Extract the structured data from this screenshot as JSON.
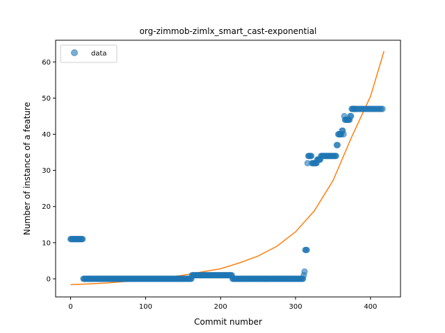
{
  "chart_data": {
    "type": "scatter",
    "title": "org-zimmob-zimlx_smart_cast-exponential",
    "xlabel": "Commit number",
    "ylabel": "Number of instance of a feature",
    "xlim": [
      -20,
      440
    ],
    "ylim": [
      -5,
      66
    ],
    "xticks": [
      0,
      100,
      200,
      300,
      400
    ],
    "yticks": [
      0,
      10,
      20,
      30,
      40,
      50,
      60
    ],
    "grid": false,
    "legend": "top-left",
    "legend_entries": [
      "data"
    ],
    "series": [
      {
        "name": "data",
        "kind": "scatter",
        "color": "#1f77b4",
        "segments": [
          {
            "x_start": 0,
            "x_end": 17,
            "y": 11
          },
          {
            "x_start": 17,
            "x_end": 162,
            "y": 0
          },
          {
            "x_start": 162,
            "x_end": 216,
            "y": 1
          },
          {
            "x_start": 216,
            "x_end": 311,
            "y": 0
          }
        ],
        "points": [
          [
            311,
            1
          ],
          [
            312,
            2
          ],
          [
            313,
            8
          ],
          [
            314,
            8
          ],
          [
            315,
            8
          ],
          [
            316,
            32
          ],
          [
            317,
            34
          ],
          [
            318,
            34
          ],
          [
            319,
            34
          ],
          [
            320,
            34
          ],
          [
            321,
            34
          ],
          [
            322,
            32
          ],
          [
            323,
            32
          ],
          [
            324,
            32
          ],
          [
            325,
            32
          ],
          [
            326,
            32
          ],
          [
            327,
            32
          ],
          [
            328,
            32
          ],
          [
            329,
            33
          ],
          [
            330,
            33
          ],
          [
            331,
            33
          ],
          [
            332,
            33
          ],
          [
            333,
            33
          ],
          [
            334,
            34
          ],
          [
            335,
            34
          ],
          [
            336,
            34
          ],
          [
            337,
            34
          ],
          [
            338,
            34
          ],
          [
            339,
            34
          ],
          [
            340,
            34
          ],
          [
            341,
            34
          ],
          [
            342,
            34
          ],
          [
            343,
            34
          ],
          [
            344,
            34
          ],
          [
            345,
            34
          ],
          [
            346,
            34
          ],
          [
            347,
            34
          ],
          [
            348,
            34
          ],
          [
            349,
            34
          ],
          [
            350,
            34
          ],
          [
            351,
            34
          ],
          [
            352,
            34
          ],
          [
            353,
            34
          ],
          [
            354,
            34
          ],
          [
            355,
            37
          ],
          [
            356,
            37
          ],
          [
            357,
            40
          ],
          [
            358,
            40
          ],
          [
            359,
            40
          ],
          [
            360,
            40
          ],
          [
            361,
            40
          ],
          [
            362,
            41
          ],
          [
            363,
            41
          ],
          [
            364,
            40
          ],
          [
            365,
            45
          ],
          [
            366,
            44
          ],
          [
            367,
            44
          ],
          [
            368,
            44
          ],
          [
            369,
            44
          ],
          [
            370,
            44
          ],
          [
            371,
            44
          ],
          [
            372,
            44
          ],
          [
            373,
            45
          ],
          [
            374,
            45
          ],
          [
            375,
            47
          ],
          [
            376,
            47
          ],
          [
            377,
            47
          ],
          [
            378,
            47
          ],
          [
            379,
            47
          ],
          [
            380,
            47
          ],
          [
            382,
            47
          ],
          [
            384,
            47
          ],
          [
            386,
            47
          ],
          [
            388,
            47
          ],
          [
            390,
            47
          ],
          [
            392,
            47
          ],
          [
            394,
            47
          ],
          [
            396,
            47
          ],
          [
            398,
            47
          ],
          [
            400,
            47
          ],
          [
            402,
            47
          ],
          [
            404,
            47
          ],
          [
            406,
            47
          ],
          [
            408,
            47
          ],
          [
            410,
            47
          ],
          [
            412,
            47
          ],
          [
            414,
            47
          ],
          [
            416,
            47
          ]
        ]
      },
      {
        "name": "",
        "kind": "line",
        "color": "#ff7f0e",
        "points": [
          [
            0,
            -1.6
          ],
          [
            25,
            -1.4
          ],
          [
            50,
            -1.1
          ],
          [
            75,
            -0.7
          ],
          [
            100,
            -0.2
          ],
          [
            125,
            0.3
          ],
          [
            150,
            1.0
          ],
          [
            175,
            1.9
          ],
          [
            200,
            2.8
          ],
          [
            225,
            4.4
          ],
          [
            250,
            6.3
          ],
          [
            275,
            9.0
          ],
          [
            300,
            13.0
          ],
          [
            325,
            18.8
          ],
          [
            350,
            27.2
          ],
          [
            375,
            39.3
          ],
          [
            400,
            50.5
          ],
          [
            418,
            63.0
          ]
        ]
      }
    ]
  }
}
